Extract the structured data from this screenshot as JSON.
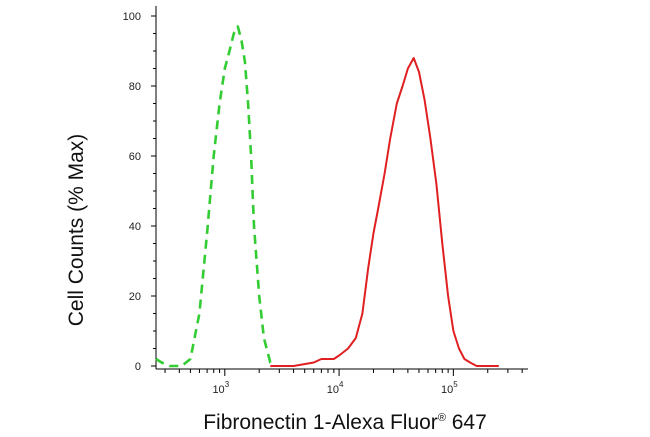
{
  "chart_data": {
    "type": "line",
    "xlabel": "Fibronectin 1-Alexa Fluor",
    "xlabel_sup": "®",
    "xlabel_suffix": " 647",
    "ylabel": "Cell Counts (% Max)",
    "x_scale": "log",
    "xlim": [
      250,
      450000
    ],
    "ylim": [
      0,
      100
    ],
    "grid": false,
    "legend": "none",
    "y_ticks": [
      0,
      20,
      40,
      60,
      80,
      100
    ],
    "x_major_ticks": [
      1000,
      10000,
      100000
    ],
    "x_tick_labels": [
      {
        "base": "10",
        "exp": "3"
      },
      {
        "base": "10",
        "exp": "4"
      },
      {
        "base": "10",
        "exp": "5"
      }
    ],
    "series": [
      {
        "color": "#33cc33",
        "style": "dashed",
        "x": [
          250,
          280,
          330,
          380,
          420,
          500,
          600,
          700,
          800,
          900,
          1000,
          1100,
          1200,
          1300,
          1400,
          1500,
          1600,
          1700,
          1800,
          2000,
          2200,
          2500,
          2800
        ],
        "y": [
          2,
          1,
          0,
          0,
          0,
          2,
          15,
          38,
          60,
          75,
          85,
          90,
          95,
          97,
          93,
          87,
          75,
          60,
          40,
          20,
          8,
          1,
          0
        ]
      },
      {
        "color": "#e02020",
        "style": "solid",
        "x": [
          2500,
          4000,
          6000,
          7000,
          8000,
          9000,
          10000,
          12000,
          14000,
          16000,
          18000,
          20000,
          22000,
          25000,
          28000,
          32000,
          36000,
          40000,
          45000,
          50000,
          56000,
          63000,
          71000,
          80000,
          90000,
          100000,
          112000,
          125000,
          140000,
          160000,
          200000,
          250000
        ],
        "y": [
          0,
          0,
          1,
          2,
          2,
          2,
          3,
          5,
          8,
          15,
          28,
          38,
          45,
          55,
          65,
          75,
          80,
          85,
          88,
          84,
          76,
          65,
          52,
          35,
          20,
          10,
          5,
          2,
          1,
          0,
          0,
          0
        ]
      }
    ]
  }
}
